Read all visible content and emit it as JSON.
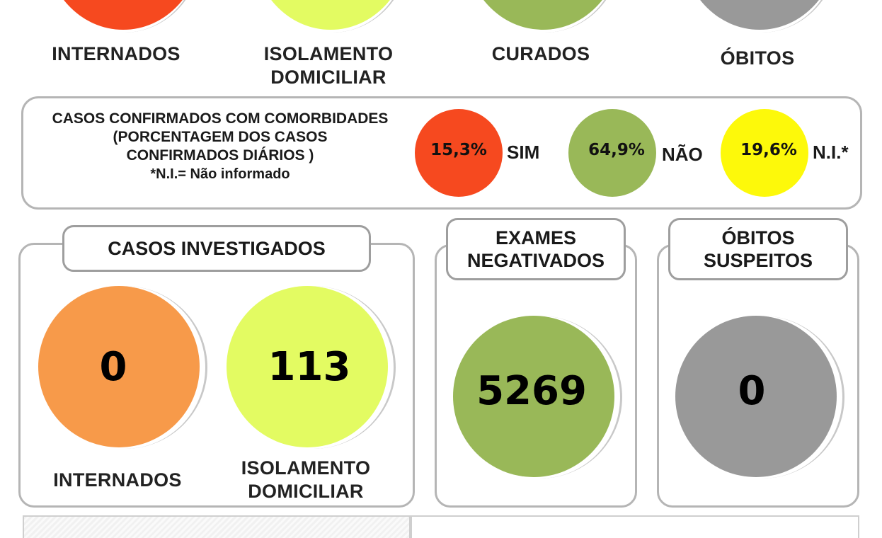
{
  "top_row": {
    "colors": {
      "internados": "#f6491f",
      "isolamento": "#e3fb62",
      "curados": "#99b858",
      "obitos": "#999999"
    },
    "labels": {
      "internados": "INTERNADOS",
      "isolamento_line1": "ISOLAMENTO",
      "isolamento_line2": "DOMICILIAR",
      "curados": "CURADOS",
      "obitos": "ÓBITOS"
    }
  },
  "comorbidades": {
    "title_line1": "CASOS CONFIRMADOS COM COMORBIDADES",
    "title_line2": "(PORCENTAGEM DOS CASOS",
    "title_line3": "CONFIRMADOS DIÁRIOS )",
    "footnote": "*N.I.= Não informado",
    "sim": {
      "value": "15,3%",
      "label": "SIM",
      "color": "#f6491f"
    },
    "nao": {
      "value": "64,9%",
      "label": "NÃO",
      "color": "#99b858"
    },
    "ni": {
      "value": "19,6%",
      "label": "N.I.*",
      "color": "#fdf90a"
    }
  },
  "investigados": {
    "title": "CASOS INVESTIGADOS",
    "internados": {
      "value": "0",
      "label": "INTERNADOS",
      "color": "#f79a4a"
    },
    "isolamento": {
      "value": "113",
      "label_line1": "ISOLAMENTO",
      "label_line2": "DOMICILIAR",
      "color": "#e3fb62"
    }
  },
  "exames": {
    "title_line1": "EXAMES",
    "title_line2": "NEGATIVADOS",
    "value": "5269",
    "color": "#99b858"
  },
  "obitos_suspeitos": {
    "title_line1": "ÓBITOS",
    "title_line2": "SUSPEITOS",
    "value": "0",
    "color": "#999999"
  }
}
